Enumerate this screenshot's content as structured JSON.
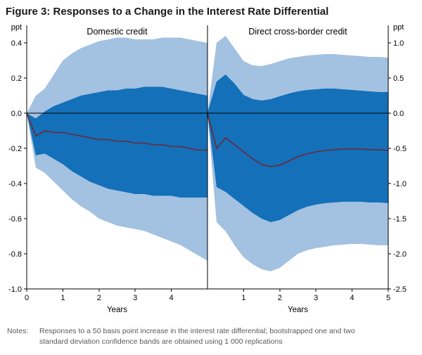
{
  "header": {
    "title": "Figure 3: Responses to a Change in the Interest Rate Differential"
  },
  "notes": {
    "label": "Notes:",
    "line1": "Responses to a 50 basis point increase in the interest rate differential; bootstrapped one and two",
    "line2": "standard deviation confidence bands are obtained using 1 000 replications"
  },
  "chart_data": {
    "type": "area",
    "title": "Responses to a Change in the Interest Rate Differential",
    "unit": "ppt",
    "xlim": [
      0,
      5
    ],
    "x": [
      0,
      0.25,
      0.5,
      0.75,
      1,
      1.25,
      1.5,
      1.75,
      2,
      2.25,
      2.5,
      2.75,
      3,
      3.25,
      3.5,
      3.75,
      4,
      4.25,
      4.5,
      4.75,
      5
    ],
    "colors": {
      "two_sd_band": "#a3c1e1",
      "one_sd_band": "#1470b8",
      "mean_line": "#6d2837",
      "zero_line": "#000000",
      "axis": "#000000"
    },
    "panels": [
      {
        "title": "Domestic credit",
        "xlabel": "Years",
        "ylim": [
          -1.0,
          0.5
        ],
        "yticks": [
          0.4,
          0.2,
          0.0,
          -0.2,
          -0.4,
          -0.6,
          -0.8,
          -1.0
        ],
        "ytick_labels": [
          "0.4",
          "0.2",
          "0.0",
          "-0.2",
          "-0.4",
          "-0.6",
          "-0.8",
          "-1.0"
        ],
        "yaxis_side": "left",
        "xticks": [
          0,
          1,
          2,
          3,
          4
        ],
        "xtick_labels": [
          "0",
          "1",
          "2",
          "3",
          "4"
        ],
        "series": {
          "mean": [
            0,
            -0.13,
            -0.1,
            -0.11,
            -0.11,
            -0.12,
            -0.13,
            -0.14,
            -0.15,
            -0.15,
            -0.16,
            -0.16,
            -0.17,
            -0.17,
            -0.18,
            -0.18,
            -0.19,
            -0.19,
            -0.2,
            -0.21,
            -0.21
          ],
          "one_sd_upper": [
            0,
            -0.03,
            0.01,
            0.04,
            0.06,
            0.08,
            0.1,
            0.11,
            0.12,
            0.13,
            0.13,
            0.14,
            0.14,
            0.15,
            0.15,
            0.15,
            0.14,
            0.13,
            0.12,
            0.11,
            0.1
          ],
          "one_sd_lower": [
            0,
            -0.24,
            -0.23,
            -0.26,
            -0.29,
            -0.33,
            -0.36,
            -0.39,
            -0.41,
            -0.43,
            -0.44,
            -0.45,
            -0.46,
            -0.46,
            -0.47,
            -0.47,
            -0.47,
            -0.48,
            -0.48,
            -0.48,
            -0.48
          ],
          "two_sd_upper": [
            0,
            0.1,
            0.14,
            0.22,
            0.3,
            0.34,
            0.37,
            0.39,
            0.41,
            0.42,
            0.43,
            0.43,
            0.42,
            0.42,
            0.42,
            0.43,
            0.43,
            0.43,
            0.42,
            0.41,
            0.4
          ],
          "two_sd_lower": [
            0,
            -0.31,
            -0.34,
            -0.39,
            -0.44,
            -0.49,
            -0.53,
            -0.56,
            -0.6,
            -0.62,
            -0.64,
            -0.65,
            -0.66,
            -0.67,
            -0.69,
            -0.71,
            -0.73,
            -0.75,
            -0.78,
            -0.81,
            -0.84
          ]
        }
      },
      {
        "title": "Direct cross-border credit",
        "xlabel": "Years",
        "ylim": [
          -2.5,
          1.25
        ],
        "yticks": [
          1.0,
          0.5,
          0.0,
          -0.5,
          -1.0,
          -1.5,
          -2.0,
          -2.5
        ],
        "ytick_labels": [
          "1.0",
          "0.5",
          "0.0",
          "-0.5",
          "-1.0",
          "-1.5",
          "-2.0",
          "-2.5"
        ],
        "yaxis_side": "right",
        "xticks": [
          1,
          2,
          3,
          4,
          5
        ],
        "xtick_labels": [
          "1",
          "2",
          "3",
          "4",
          "5"
        ],
        "series": {
          "mean": [
            0,
            -0.5,
            -0.35,
            -0.45,
            -0.55,
            -0.65,
            -0.73,
            -0.76,
            -0.74,
            -0.68,
            -0.62,
            -0.58,
            -0.55,
            -0.53,
            -0.52,
            -0.51,
            -0.51,
            -0.51,
            -0.52,
            -0.52,
            -0.53
          ],
          "one_sd_upper": [
            0,
            0.45,
            0.55,
            0.42,
            0.26,
            0.2,
            0.18,
            0.2,
            0.24,
            0.28,
            0.31,
            0.33,
            0.34,
            0.35,
            0.35,
            0.34,
            0.33,
            0.32,
            0.31,
            0.3,
            0.3
          ],
          "one_sd_lower": [
            0,
            -1.05,
            -1.12,
            -1.22,
            -1.32,
            -1.42,
            -1.5,
            -1.55,
            -1.52,
            -1.45,
            -1.38,
            -1.33,
            -1.3,
            -1.28,
            -1.27,
            -1.26,
            -1.26,
            -1.26,
            -1.27,
            -1.27,
            -1.28
          ],
          "two_sd_upper": [
            0,
            1.0,
            1.1,
            0.92,
            0.74,
            0.68,
            0.67,
            0.7,
            0.74,
            0.78,
            0.8,
            0.82,
            0.83,
            0.84,
            0.84,
            0.83,
            0.82,
            0.81,
            0.8,
            0.8,
            0.79
          ],
          "two_sd_lower": [
            0,
            -1.55,
            -1.68,
            -1.88,
            -2.05,
            -2.15,
            -2.22,
            -2.25,
            -2.2,
            -2.1,
            -2.0,
            -1.95,
            -1.92,
            -1.9,
            -1.88,
            -1.87,
            -1.86,
            -1.86,
            -1.87,
            -1.88,
            -1.88
          ]
        }
      }
    ]
  }
}
